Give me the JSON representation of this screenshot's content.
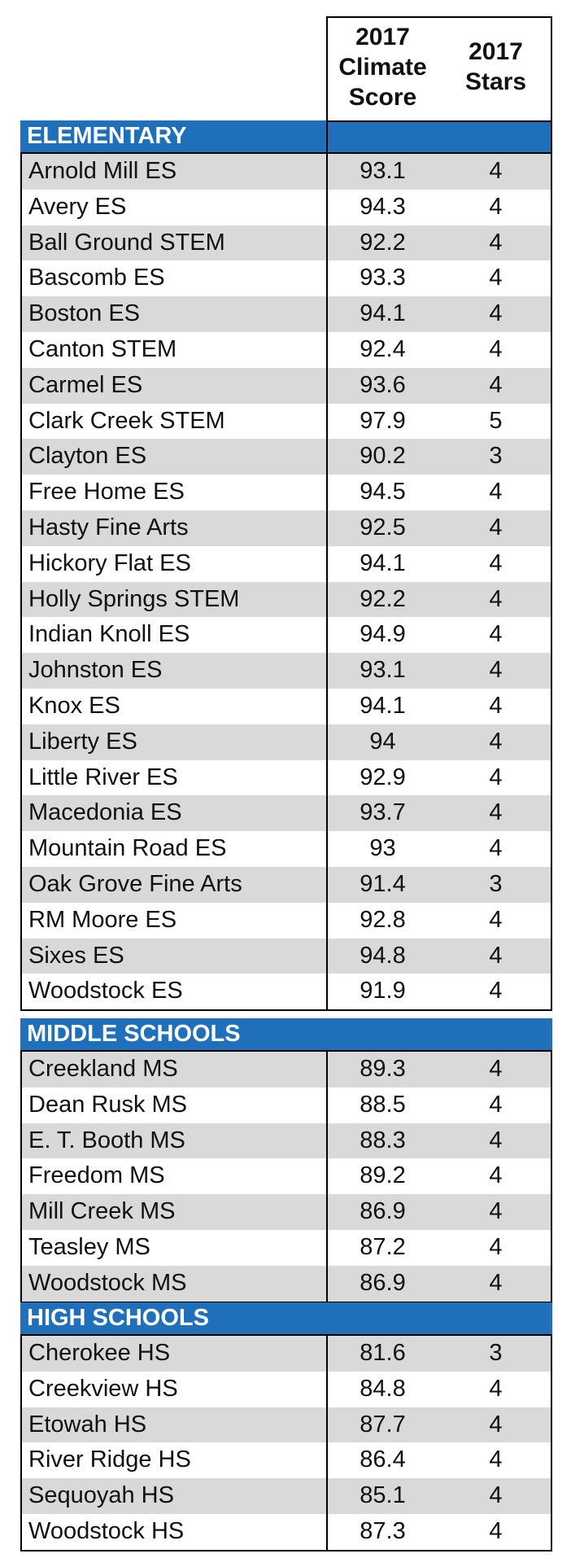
{
  "header": {
    "score": "2017\nClimate\nScore",
    "stars": "2017\nStars"
  },
  "sections": [
    {
      "title": "ELEMENTARY",
      "rows": [
        {
          "name": "Arnold Mill ES",
          "score": "93.1",
          "stars": "4"
        },
        {
          "name": "Avery ES",
          "score": "94.3",
          "stars": "4"
        },
        {
          "name": "Ball Ground STEM",
          "score": "92.2",
          "stars": "4"
        },
        {
          "name": "Bascomb ES",
          "score": "93.3",
          "stars": "4"
        },
        {
          "name": "Boston ES",
          "score": "94.1",
          "stars": "4"
        },
        {
          "name": "Canton STEM",
          "score": "92.4",
          "stars": "4"
        },
        {
          "name": "Carmel ES",
          "score": "93.6",
          "stars": "4"
        },
        {
          "name": "Clark Creek STEM",
          "score": "97.9",
          "stars": "5"
        },
        {
          "name": "Clayton ES",
          "score": "90.2",
          "stars": "3"
        },
        {
          "name": "Free Home ES",
          "score": "94.5",
          "stars": "4"
        },
        {
          "name": "Hasty Fine Arts",
          "score": "92.5",
          "stars": "4"
        },
        {
          "name": "Hickory Flat ES",
          "score": "94.1",
          "stars": "4"
        },
        {
          "name": "Holly Springs STEM",
          "score": "92.2",
          "stars": "4"
        },
        {
          "name": "Indian Knoll ES",
          "score": "94.9",
          "stars": "4"
        },
        {
          "name": "Johnston ES",
          "score": "93.1",
          "stars": "4"
        },
        {
          "name": "Knox ES",
          "score": "94.1",
          "stars": "4"
        },
        {
          "name": "Liberty ES",
          "score": "94",
          "stars": "4"
        },
        {
          "name": "Little River ES",
          "score": "92.9",
          "stars": "4"
        },
        {
          "name": "Macedonia ES",
          "score": "93.7",
          "stars": "4"
        },
        {
          "name": "Mountain Road ES",
          "score": "93",
          "stars": "4"
        },
        {
          "name": "Oak Grove Fine Arts",
          "score": "91.4",
          "stars": "3"
        },
        {
          "name": "RM Moore ES",
          "score": "92.8",
          "stars": "4"
        },
        {
          "name": "Sixes ES",
          "score": "94.8",
          "stars": "4"
        },
        {
          "name": "Woodstock ES",
          "score": "91.9",
          "stars": "4"
        }
      ]
    },
    {
      "title": "MIDDLE SCHOOLS",
      "rows": [
        {
          "name": "Creekland MS",
          "score": "89.3",
          "stars": "4"
        },
        {
          "name": "Dean Rusk MS",
          "score": "88.5",
          "stars": "4"
        },
        {
          "name": "E. T. Booth MS",
          "score": "88.3",
          "stars": "4"
        },
        {
          "name": "Freedom MS",
          "score": "89.2",
          "stars": "4"
        },
        {
          "name": "Mill Creek MS",
          "score": "86.9",
          "stars": "4"
        },
        {
          "name": "Teasley MS",
          "score": "87.2",
          "stars": "4"
        },
        {
          "name": "Woodstock MS",
          "score": "86.9",
          "stars": "4"
        }
      ]
    },
    {
      "title": "HIGH SCHOOLS",
      "rows": [
        {
          "name": "Cherokee HS",
          "score": "81.6",
          "stars": "3"
        },
        {
          "name": "Creekview HS",
          "score": "84.8",
          "stars": "4"
        },
        {
          "name": "Etowah HS",
          "score": "87.7",
          "stars": "4"
        },
        {
          "name": "River Ridge HS",
          "score": "86.4",
          "stars": "4"
        },
        {
          "name": "Sequoyah HS",
          "score": "85.1",
          "stars": "4"
        },
        {
          "name": "Woodstock HS",
          "score": "87.3",
          "stars": "4"
        }
      ]
    }
  ]
}
